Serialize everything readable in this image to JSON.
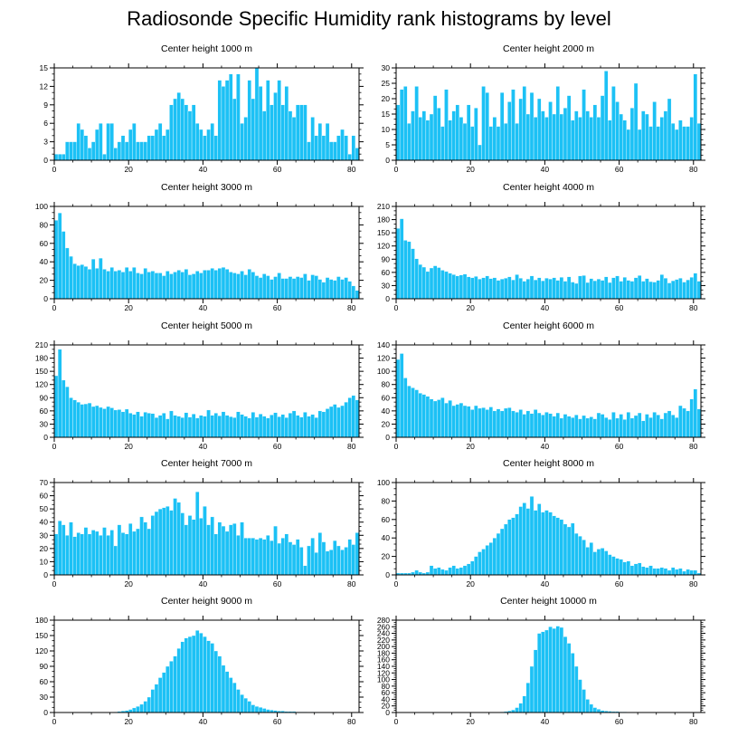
{
  "title": "Radiosonde Specific Humidity rank histograms by level",
  "colors": {
    "bar": "#1cc1f5",
    "axis": "#000000"
  },
  "chart_data": [
    {
      "type": "bar",
      "title": "Center height 1000 m",
      "xlim": [
        0,
        82
      ],
      "ylim": [
        0,
        15
      ],
      "yticks": [
        0,
        3,
        6,
        9,
        12,
        15
      ],
      "xticks": [
        0,
        20,
        40,
        60,
        80
      ],
      "values": [
        1,
        1,
        1,
        3,
        3,
        3,
        6,
        5,
        4,
        2,
        3,
        5,
        6,
        1,
        6,
        6,
        2,
        3,
        4,
        3,
        5,
        6,
        3,
        3,
        3,
        4,
        4,
        5,
        6,
        4,
        5,
        9,
        10,
        11,
        10,
        9,
        8,
        9,
        6,
        5,
        4,
        5,
        6,
        4,
        13,
        12,
        13,
        14,
        10,
        14,
        6,
        7,
        13,
        10,
        15,
        12,
        8,
        13,
        9,
        11,
        13,
        9,
        12,
        8,
        7,
        9,
        9,
        9,
        3,
        7,
        4,
        6,
        4,
        6,
        3,
        3,
        4,
        5,
        4,
        1,
        4,
        2
      ]
    },
    {
      "type": "bar",
      "title": "Center height 2000 m",
      "xlim": [
        0,
        82
      ],
      "ylim": [
        0,
        30
      ],
      "yticks": [
        0,
        5,
        10,
        15,
        20,
        25,
        30
      ],
      "xticks": [
        0,
        20,
        40,
        60,
        80
      ],
      "values": [
        18,
        23,
        24,
        12,
        16,
        24,
        14,
        16,
        13,
        15,
        21,
        17,
        11,
        23,
        13,
        16,
        18,
        14,
        12,
        18,
        11,
        17,
        5,
        24,
        22,
        11,
        14,
        11,
        22,
        12,
        19,
        23,
        12,
        20,
        24,
        15,
        22,
        14,
        20,
        16,
        14,
        19,
        15,
        24,
        15,
        17,
        21,
        13,
        16,
        14,
        23,
        16,
        14,
        18,
        14,
        21,
        29,
        13,
        24,
        19,
        15,
        13,
        10,
        17,
        25,
        10,
        16,
        15,
        11,
        19,
        11,
        14,
        16,
        20,
        12,
        10,
        13,
        11,
        11,
        14,
        28,
        12
      ]
    },
    {
      "type": "bar",
      "title": "Center height 3000 m",
      "xlim": [
        0,
        82
      ],
      "ylim": [
        0,
        100
      ],
      "yticks": [
        0,
        20,
        40,
        60,
        80,
        100
      ],
      "xticks": [
        0,
        20,
        40,
        60,
        80
      ],
      "values": [
        85,
        93,
        73,
        55,
        46,
        38,
        36,
        37,
        35,
        32,
        43,
        33,
        44,
        32,
        30,
        34,
        30,
        31,
        29,
        34,
        30,
        34,
        28,
        27,
        33,
        29,
        30,
        28,
        28,
        25,
        30,
        27,
        29,
        31,
        29,
        32,
        26,
        27,
        30,
        28,
        31,
        31,
        33,
        31,
        33,
        34,
        32,
        29,
        28,
        27,
        30,
        26,
        32,
        29,
        25,
        23,
        27,
        25,
        21,
        24,
        28,
        22,
        22,
        24,
        22,
        24,
        23,
        27,
        20,
        26,
        25,
        21,
        18,
        23,
        21,
        20,
        24,
        21,
        23,
        19,
        14,
        9
      ]
    },
    {
      "type": "bar",
      "title": "Center height 4000 m",
      "xlim": [
        0,
        82
      ],
      "ylim": [
        0,
        210
      ],
      "yticks": [
        0,
        30,
        60,
        90,
        120,
        150,
        180,
        210
      ],
      "xticks": [
        0,
        20,
        40,
        60,
        80
      ],
      "values": [
        160,
        182,
        133,
        130,
        114,
        91,
        78,
        72,
        62,
        70,
        75,
        71,
        65,
        62,
        58,
        55,
        52,
        54,
        56,
        50,
        48,
        51,
        45,
        48,
        52,
        46,
        48,
        42,
        45,
        47,
        50,
        43,
        55,
        47,
        40,
        45,
        52,
        43,
        48,
        41,
        47,
        45,
        48,
        42,
        49,
        40,
        50,
        38,
        35,
        52,
        53,
        37,
        46,
        41,
        45,
        42,
        50,
        37,
        48,
        52,
        40,
        49,
        42,
        40,
        48,
        53,
        40,
        46,
        39,
        38,
        42,
        55,
        47,
        36,
        41,
        44,
        47,
        38,
        43,
        49,
        58,
        40
      ]
    },
    {
      "type": "bar",
      "title": "Center height 5000 m",
      "xlim": [
        0,
        82
      ],
      "ylim": [
        0,
        210
      ],
      "yticks": [
        0,
        30,
        60,
        90,
        120,
        150,
        180,
        210
      ],
      "xticks": [
        0,
        20,
        40,
        60,
        80
      ],
      "values": [
        140,
        200,
        130,
        115,
        90,
        85,
        80,
        75,
        76,
        78,
        70,
        72,
        68,
        65,
        70,
        67,
        62,
        63,
        58,
        64,
        55,
        52,
        58,
        48,
        57,
        55,
        54,
        45,
        50,
        55,
        42,
        60,
        50,
        48,
        45,
        56,
        46,
        53,
        44,
        50,
        48,
        62,
        50,
        55,
        49,
        58,
        50,
        47,
        45,
        58,
        52,
        48,
        44,
        57,
        46,
        53,
        48,
        44,
        51,
        56,
        47,
        52,
        45,
        55,
        60,
        50,
        46,
        57,
        48,
        52,
        45,
        60,
        58,
        65,
        70,
        75,
        68,
        72,
        80,
        90,
        95,
        85
      ]
    },
    {
      "type": "bar",
      "title": "Center height 6000 m",
      "xlim": [
        0,
        82
      ],
      "ylim": [
        0,
        140
      ],
      "yticks": [
        0,
        20,
        40,
        60,
        80,
        100,
        120,
        140
      ],
      "xticks": [
        0,
        20,
        40,
        60,
        80
      ],
      "values": [
        118,
        127,
        90,
        78,
        75,
        72,
        67,
        65,
        62,
        58,
        55,
        57,
        60,
        52,
        56,
        48,
        50,
        52,
        48,
        47,
        42,
        48,
        44,
        45,
        42,
        46,
        40,
        43,
        40,
        44,
        45,
        40,
        38,
        42,
        35,
        40,
        36,
        42,
        37,
        34,
        38,
        36,
        32,
        37,
        29,
        35,
        32,
        30,
        34,
        28,
        33,
        29,
        31,
        28,
        37,
        35,
        30,
        27,
        38,
        29,
        35,
        27,
        38,
        29,
        33,
        37,
        25,
        35,
        30,
        38,
        34,
        28,
        37,
        40,
        34,
        30,
        48,
        44,
        40,
        58,
        73,
        43
      ]
    },
    {
      "type": "bar",
      "title": "Center height 7000 m",
      "xlim": [
        0,
        82
      ],
      "ylim": [
        0,
        70
      ],
      "yticks": [
        0,
        10,
        20,
        30,
        40,
        50,
        60,
        70
      ],
      "xticks": [
        0,
        20,
        40,
        60,
        80
      ],
      "values": [
        31,
        41,
        38,
        30,
        40,
        29,
        32,
        31,
        36,
        31,
        34,
        33,
        30,
        36,
        30,
        34,
        22,
        38,
        32,
        31,
        39,
        33,
        35,
        44,
        40,
        35,
        45,
        48,
        50,
        51,
        52,
        49,
        58,
        55,
        47,
        38,
        45,
        42,
        63,
        43,
        52,
        38,
        44,
        31,
        40,
        37,
        33,
        38,
        39,
        30,
        40,
        28,
        28,
        28,
        27,
        28,
        27,
        30,
        26,
        37,
        24,
        28,
        31,
        25,
        23,
        27,
        21,
        7,
        22,
        28,
        17,
        32,
        25,
        18,
        19,
        26,
        22,
        19,
        21,
        27,
        23,
        32
      ]
    },
    {
      "type": "bar",
      "title": "Center height 8000 m",
      "xlim": [
        0,
        82
      ],
      "ylim": [
        0,
        100
      ],
      "yticks": [
        0,
        20,
        40,
        60,
        80,
        100
      ],
      "xticks": [
        0,
        20,
        40,
        60,
        80
      ],
      "values": [
        2,
        2,
        2,
        2,
        3,
        5,
        3,
        2,
        3,
        10,
        7,
        8,
        6,
        5,
        8,
        10,
        7,
        8,
        10,
        12,
        15,
        20,
        25,
        28,
        32,
        35,
        40,
        45,
        50,
        55,
        60,
        62,
        66,
        74,
        78,
        72,
        85,
        70,
        77,
        68,
        70,
        68,
        64,
        62,
        60,
        55,
        52,
        56,
        45,
        42,
        38,
        30,
        35,
        25,
        28,
        29,
        26,
        22,
        20,
        18,
        17,
        14,
        15,
        10,
        12,
        13,
        9,
        8,
        10,
        7,
        7,
        8,
        7,
        5,
        8,
        6,
        7,
        4,
        6,
        5,
        5,
        2
      ]
    },
    {
      "type": "bar",
      "title": "Center height 9000 m",
      "xlim": [
        0,
        82
      ],
      "ylim": [
        0,
        180
      ],
      "yticks": [
        0,
        30,
        60,
        90,
        120,
        150,
        180
      ],
      "xticks": [
        0,
        20,
        40,
        60,
        80
      ],
      "values": [
        0,
        0,
        0,
        0,
        0,
        0,
        0,
        0,
        0,
        1,
        0,
        0,
        0,
        0,
        0,
        0,
        1,
        2,
        3,
        4,
        6,
        9,
        12,
        16,
        22,
        30,
        45,
        55,
        68,
        78,
        90,
        100,
        110,
        125,
        138,
        145,
        148,
        150,
        160,
        155,
        148,
        140,
        135,
        120,
        110,
        92,
        80,
        68,
        58,
        45,
        35,
        28,
        22,
        15,
        12,
        10,
        8,
        6,
        5,
        4,
        3,
        3,
        2,
        2,
        2,
        1,
        1,
        1,
        0,
        1,
        0,
        0,
        0,
        0,
        0,
        0,
        0,
        0,
        0,
        0,
        0,
        0
      ]
    },
    {
      "type": "bar",
      "title": "Center height 10000 m",
      "xlim": [
        0,
        82
      ],
      "ylim": [
        0,
        280
      ],
      "yticks": [
        0,
        20,
        40,
        60,
        80,
        100,
        120,
        140,
        160,
        180,
        200,
        220,
        240,
        260,
        280
      ],
      "xticks": [
        0,
        20,
        40,
        60,
        80
      ],
      "values": [
        0,
        0,
        0,
        0,
        0,
        0,
        0,
        0,
        0,
        0,
        0,
        0,
        0,
        0,
        0,
        0,
        0,
        0,
        0,
        0,
        0,
        0,
        0,
        0,
        0,
        0,
        0,
        1,
        2,
        3,
        5,
        8,
        15,
        28,
        50,
        90,
        140,
        190,
        240,
        245,
        250,
        260,
        255,
        262,
        258,
        230,
        210,
        180,
        140,
        100,
        70,
        40,
        25,
        15,
        10,
        6,
        5,
        4,
        3,
        3,
        2,
        2,
        1,
        1,
        1,
        0,
        0,
        0,
        0,
        0,
        0,
        0,
        0,
        0,
        0,
        0,
        0,
        0,
        0,
        0,
        0,
        0
      ]
    }
  ]
}
